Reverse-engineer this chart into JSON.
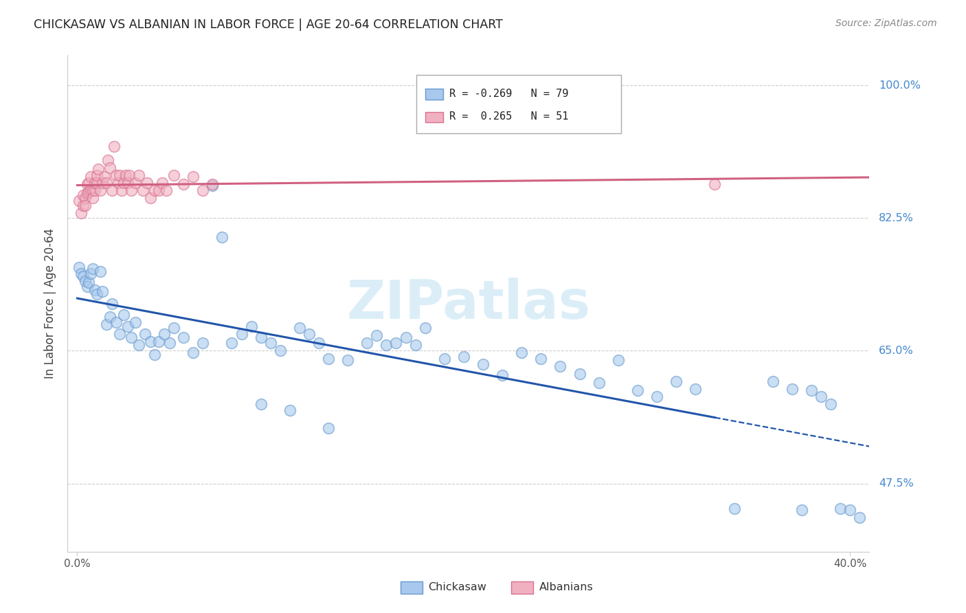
{
  "title": "CHICKASAW VS ALBANIAN IN LABOR FORCE | AGE 20-64 CORRELATION CHART",
  "source": "Source: ZipAtlas.com",
  "ylabel": "In Labor Force | Age 20-64",
  "watermark": "ZIPatlas",
  "blue_label": "Chickasaw",
  "pink_label": "Albanians",
  "blue_scatter_color": "#A8C8EE",
  "blue_scatter_edge": "#6699CC",
  "pink_scatter_color": "#F0B0C0",
  "pink_scatter_edge": "#D87090",
  "blue_line_color": "#2255AA",
  "pink_line_color": "#D06080",
  "grid_color": "#CCCCCC",
  "right_label_color": "#4488CC",
  "title_color": "#222222",
  "source_color": "#888888",
  "ylabel_color": "#444444",
  "watermark_color": "#D8EDF8",
  "ytick_labeled": {
    "0.475": "47.5%",
    "0.65": "65.0%",
    "0.825": "82.5%",
    "1.00": "100.0%"
  },
  "ylim": [
    0.385,
    1.04
  ],
  "xlim": [
    -0.005,
    0.41
  ],
  "blue_x": [
    0.001,
    0.002,
    0.003,
    0.004,
    0.005,
    0.006,
    0.007,
    0.008,
    0.009,
    0.01,
    0.012,
    0.013,
    0.015,
    0.017,
    0.018,
    0.02,
    0.022,
    0.024,
    0.026,
    0.028,
    0.03,
    0.032,
    0.035,
    0.038,
    0.04,
    0.042,
    0.045,
    0.048,
    0.05,
    0.055,
    0.06,
    0.065,
    0.07,
    0.075,
    0.08,
    0.085,
    0.09,
    0.095,
    0.1,
    0.105,
    0.11,
    0.115,
    0.12,
    0.125,
    0.13,
    0.14,
    0.15,
    0.155,
    0.16,
    0.165,
    0.17,
    0.175,
    0.18,
    0.19,
    0.2,
    0.21,
    0.22,
    0.23,
    0.24,
    0.25,
    0.26,
    0.27,
    0.28,
    0.29,
    0.3,
    0.31,
    0.32,
    0.34,
    0.36,
    0.37,
    0.375,
    0.38,
    0.385,
    0.39,
    0.395,
    0.4,
    0.405,
    0.095,
    0.13
  ],
  "blue_y": [
    0.76,
    0.752,
    0.748,
    0.742,
    0.735,
    0.74,
    0.752,
    0.758,
    0.73,
    0.725,
    0.755,
    0.728,
    0.685,
    0.695,
    0.712,
    0.688,
    0.672,
    0.698,
    0.682,
    0.668,
    0.688,
    0.658,
    0.672,
    0.662,
    0.645,
    0.662,
    0.672,
    0.66,
    0.68,
    0.668,
    0.648,
    0.66,
    0.868,
    0.8,
    0.66,
    0.672,
    0.682,
    0.668,
    0.66,
    0.65,
    0.572,
    0.68,
    0.672,
    0.66,
    0.548,
    0.638,
    0.66,
    0.67,
    0.658,
    0.66,
    0.668,
    0.658,
    0.68,
    0.64,
    0.642,
    0.632,
    0.618,
    0.648,
    0.64,
    0.63,
    0.62,
    0.608,
    0.638,
    0.598,
    0.59,
    0.61,
    0.6,
    0.442,
    0.61,
    0.6,
    0.44,
    0.598,
    0.59,
    0.58,
    0.442,
    0.44,
    0.43,
    0.58,
    0.64
  ],
  "pink_x": [
    0.001,
    0.002,
    0.003,
    0.003,
    0.004,
    0.004,
    0.005,
    0.005,
    0.006,
    0.006,
    0.007,
    0.007,
    0.008,
    0.008,
    0.009,
    0.009,
    0.01,
    0.01,
    0.011,
    0.012,
    0.013,
    0.014,
    0.015,
    0.016,
    0.017,
    0.018,
    0.019,
    0.02,
    0.021,
    0.022,
    0.023,
    0.024,
    0.025,
    0.026,
    0.027,
    0.028,
    0.03,
    0.032,
    0.034,
    0.036,
    0.038,
    0.04,
    0.042,
    0.044,
    0.046,
    0.05,
    0.055,
    0.06,
    0.065,
    0.07,
    0.33
  ],
  "pink_y": [
    0.848,
    0.832,
    0.842,
    0.855,
    0.852,
    0.842,
    0.858,
    0.87,
    0.872,
    0.86,
    0.88,
    0.862,
    0.862,
    0.852,
    0.862,
    0.872,
    0.872,
    0.882,
    0.89,
    0.862,
    0.872,
    0.88,
    0.872,
    0.902,
    0.892,
    0.862,
    0.92,
    0.882,
    0.872,
    0.882,
    0.862,
    0.872,
    0.882,
    0.872,
    0.882,
    0.862,
    0.872,
    0.882,
    0.862,
    0.872,
    0.852,
    0.862,
    0.862,
    0.872,
    0.862,
    0.882,
    0.87,
    0.88,
    0.862,
    0.87,
    0.87
  ]
}
